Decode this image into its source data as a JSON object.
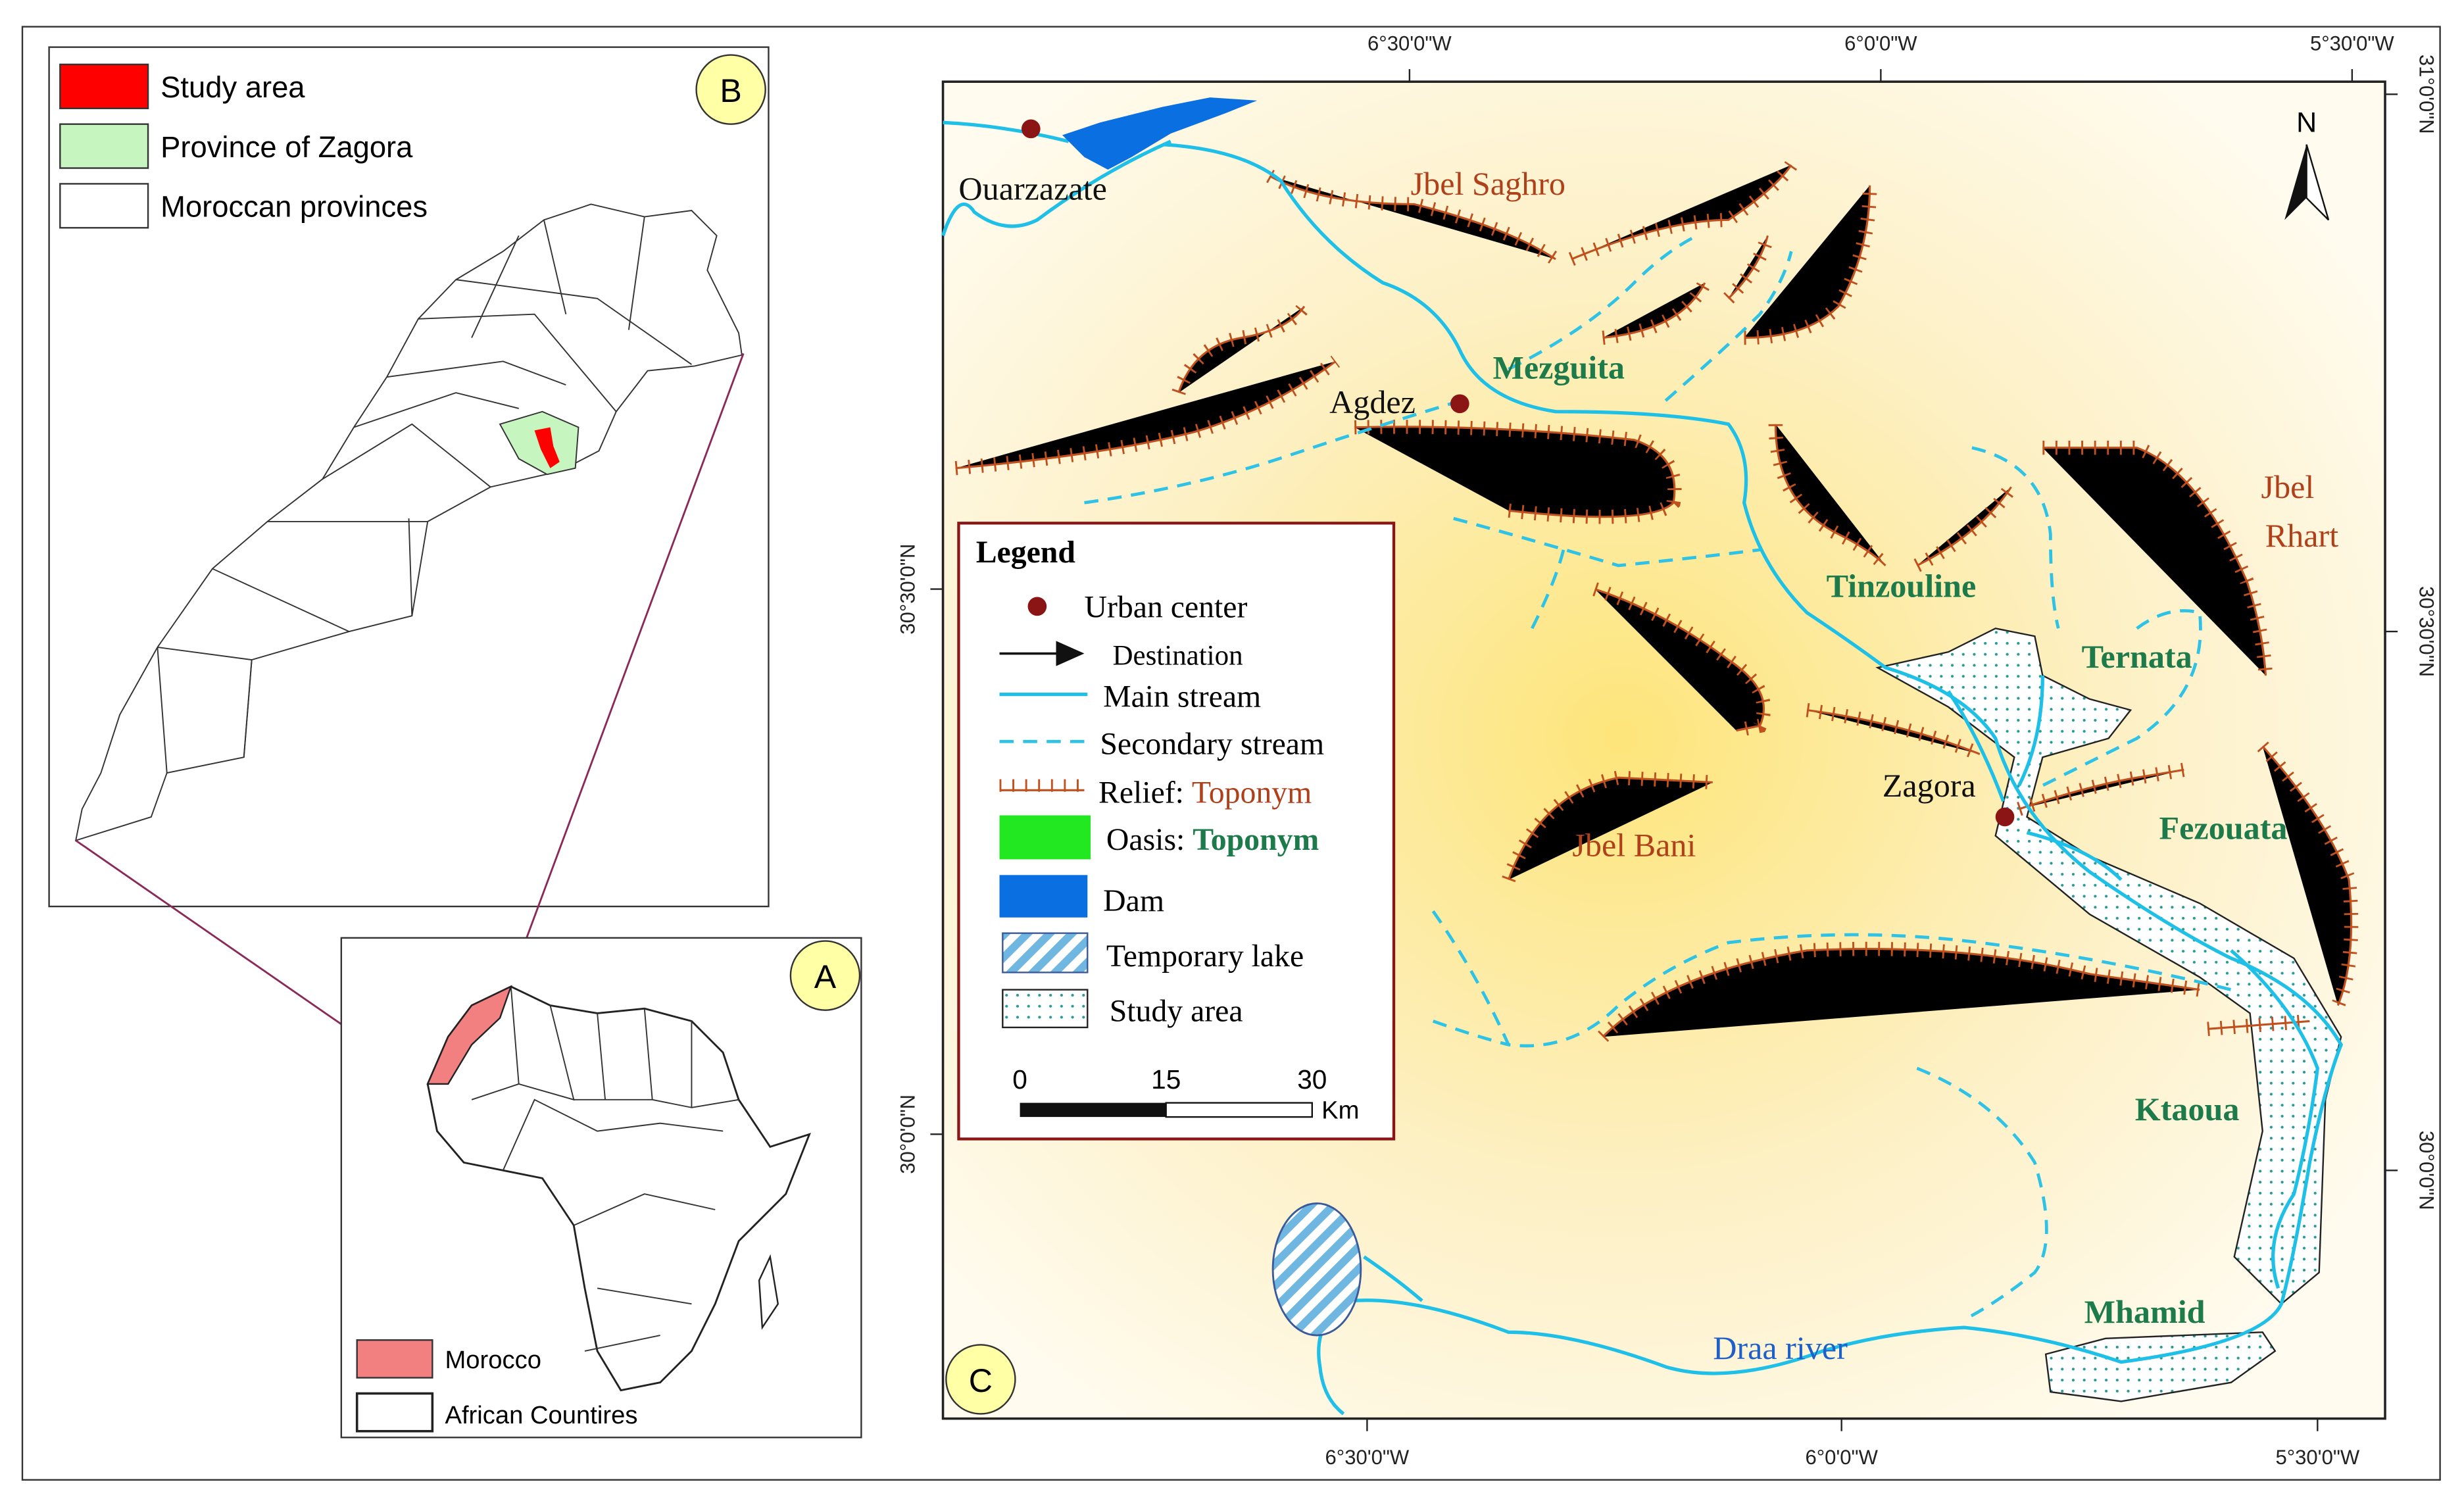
{
  "panel_b": {
    "letter": "B",
    "legend": [
      "Study area",
      "Province of Zagora",
      "Moroccan provinces"
    ]
  },
  "panel_a": {
    "letter": "A",
    "legend": [
      "Morocco",
      "African Countires"
    ]
  },
  "panel_c": {
    "letter": "C",
    "top_ticks": [
      "6°30'0\"W",
      "6°0'0\"W",
      "5°30'0\"W"
    ],
    "bottom_ticks": [
      "6°30'0\"W",
      "6°0'0\"W",
      "5°30'0\"W"
    ],
    "left_ticks": [
      "30°30'0\"N",
      "30°0'0\"N"
    ],
    "right_ticks": [
      "31°0'0\"N",
      "30°30'0\"N",
      "30°0'0\"N"
    ],
    "north": "N",
    "towns": [
      "Ouarzazate",
      "Agdez",
      "Zagora"
    ],
    "reliefs": [
      "Jbel Saghro",
      "Jbel Bani",
      "Jbel",
      "Rhart"
    ],
    "oases": [
      "Mezguita",
      "Tinzouline",
      "Ternata",
      "Fezouata",
      "Ktaoua",
      "Mhamid"
    ],
    "river": "Draa river",
    "legend": {
      "title": "Legend",
      "urban": "Urban center",
      "destination": "Destination",
      "main_stream": "Main stream",
      "secondary_stream": "Secondary stream",
      "relief": "Relief:",
      "relief_toponym": "Toponym",
      "oasis": "Oasis:",
      "oasis_toponym": "Toponym",
      "dam": "Dam",
      "lake": "Temporary lake",
      "study_area": "Study area",
      "scale": [
        0,
        15,
        30
      ],
      "unit": "Km"
    }
  }
}
